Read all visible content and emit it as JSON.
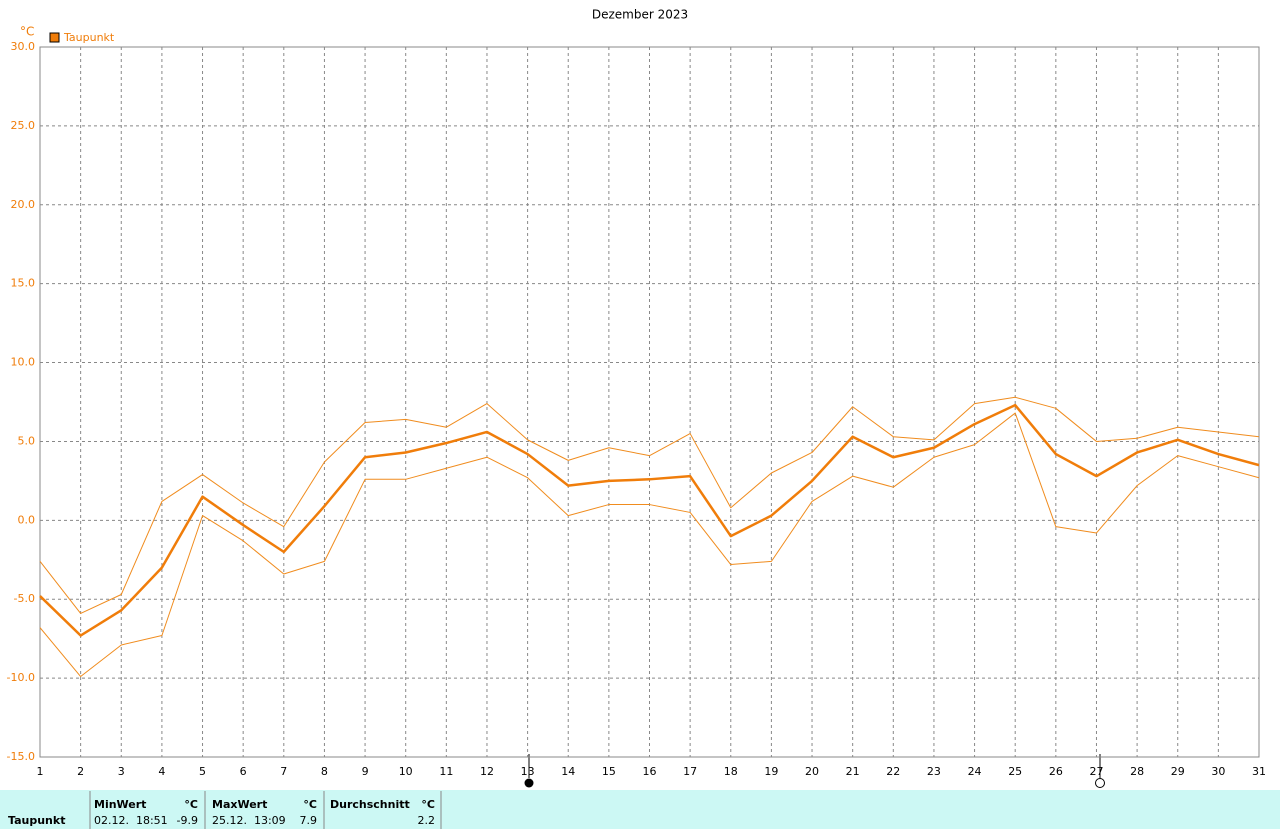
{
  "chart_data": {
    "type": "line",
    "title": "Dezember 2023",
    "y_label": "°C",
    "x": [
      1,
      2,
      3,
      4,
      5,
      6,
      7,
      8,
      9,
      10,
      11,
      12,
      13,
      14,
      15,
      16,
      17,
      18,
      19,
      20,
      21,
      22,
      23,
      24,
      25,
      26,
      27,
      28,
      29,
      30,
      31
    ],
    "xlim": [
      1,
      31
    ],
    "xticks": [
      1,
      2,
      3,
      4,
      5,
      6,
      7,
      8,
      9,
      10,
      11,
      12,
      13,
      14,
      15,
      16,
      17,
      18,
      19,
      20,
      21,
      22,
      23,
      24,
      25,
      26,
      27,
      28,
      29,
      30,
      31
    ],
    "ylim": [
      -15,
      30
    ],
    "yticks": [
      {
        "value": -15,
        "label": "-15.0"
      },
      {
        "value": -10,
        "label": "-10.0"
      },
      {
        "value": -5,
        "label": "-5.0"
      },
      {
        "value": 0,
        "label": "0.0"
      },
      {
        "value": 5,
        "label": "5.0"
      },
      {
        "value": 10,
        "label": "10.0"
      },
      {
        "value": 15,
        "label": "15.0"
      },
      {
        "value": 20,
        "label": "20.0"
      },
      {
        "value": 25,
        "label": "25.0"
      },
      {
        "value": 30,
        "label": "30.0"
      }
    ],
    "grid": true,
    "series": [
      {
        "name": "Taupunkt",
        "color": "#f07d0a",
        "width": 2.5,
        "values": [
          -4.8,
          -7.3,
          -5.7,
          -3.0,
          1.5,
          -0.3,
          -2.0,
          0.9,
          4.0,
          4.3,
          4.9,
          5.6,
          4.2,
          2.2,
          2.5,
          2.6,
          2.8,
          -1.0,
          0.3,
          2.5,
          5.3,
          4.0,
          4.6,
          6.1,
          7.3,
          4.2,
          2.8,
          4.3,
          5.1,
          4.2,
          3.5
        ]
      },
      {
        "color": "#f08c1e",
        "width": 1,
        "values": [
          -2.6,
          -5.9,
          -4.7,
          1.2,
          2.9,
          1.1,
          -0.4,
          3.7,
          6.2,
          6.4,
          5.9,
          7.4,
          5.1,
          3.8,
          4.6,
          4.1,
          5.5,
          0.8,
          3.0,
          4.3,
          7.2,
          5.3,
          5.1,
          7.4,
          7.8,
          7.1,
          5.0,
          5.2,
          5.9,
          5.6,
          5.3
        ]
      },
      {
        "color": "#f08c1e",
        "width": 1,
        "values": [
          -6.8,
          -9.9,
          -7.9,
          -7.3,
          0.3,
          -1.3,
          -3.4,
          -2.6,
          2.6,
          2.6,
          3.3,
          4.0,
          2.7,
          0.3,
          1.0,
          1.0,
          0.5,
          -2.8,
          -2.6,
          1.2,
          2.8,
          2.1,
          4.0,
          4.8,
          6.8,
          -0.4,
          -0.8,
          2.2,
          4.1,
          3.4,
          2.7
        ]
      }
    ]
  },
  "summary": {
    "row_label": "Taupunkt",
    "columns": [
      {
        "header": "MinWert",
        "unit": "°C",
        "time": "02.12.  18:51",
        "value": -9.9
      },
      {
        "header": "MaxWert",
        "unit": "°C",
        "time": "25.12.  13:09",
        "value": 7.9
      },
      {
        "header": "Durchschnitt",
        "unit": "°C",
        "value": 2.2
      }
    ]
  }
}
